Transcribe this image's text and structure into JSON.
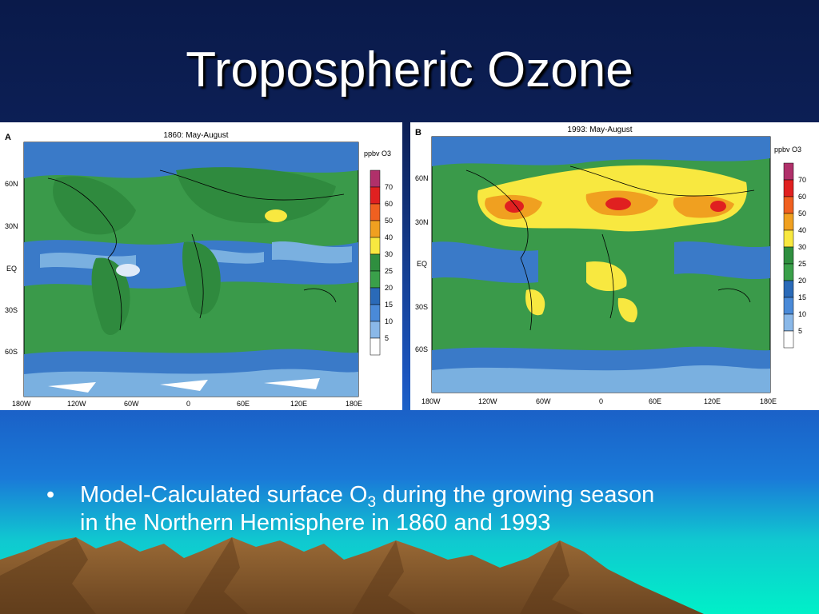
{
  "slide": {
    "title": "Tropospheric Ozone",
    "bullet_marker": "•",
    "bullet_line1_a": "Model-Calculated surface O",
    "bullet_line1_sub": "3",
    "bullet_line1_b": " during the growing season",
    "bullet_line2": "in the Northern Hemisphere in 1860 and 1993"
  },
  "maps": [
    {
      "panel_letter": "A",
      "map_title": "1860: May-August",
      "units": "ppbv O3",
      "lat_ticks": [
        "60N",
        "30N",
        "EQ",
        "30S",
        "60S"
      ],
      "lon_ticks": [
        "180W",
        "120W",
        "60W",
        "0",
        "60E",
        "120E",
        "180E"
      ],
      "legend_values": [
        "70",
        "60",
        "50",
        "40",
        "30",
        "25",
        "20",
        "15",
        "10",
        "5"
      ]
    },
    {
      "panel_letter": "B",
      "map_title": "1993: May-August",
      "units": "ppbv O3",
      "lat_ticks": [
        "60N",
        "30N",
        "EQ",
        "30S",
        "60S"
      ],
      "lon_ticks": [
        "180W",
        "120W",
        "60W",
        "0",
        "60E",
        "120E",
        "180E"
      ],
      "legend_values": [
        "70",
        "60",
        "50",
        "40",
        "30",
        "25",
        "20",
        "15",
        "10",
        "5"
      ]
    }
  ],
  "legend_colors": [
    "#b0306a",
    "#e02020",
    "#f06020",
    "#f0a020",
    "#f8e840",
    "#2f8f3f",
    "#3aa04a",
    "#2a6ab8",
    "#4a8ad8",
    "#8ab8e8",
    "#ffffff"
  ],
  "colors": {
    "background_top": "#0a1a4a",
    "background_mid": "#1a4ab0",
    "background_bottom": "#00e0c8",
    "mountains": "#8a5a2a",
    "title_text": "#ffffff"
  }
}
